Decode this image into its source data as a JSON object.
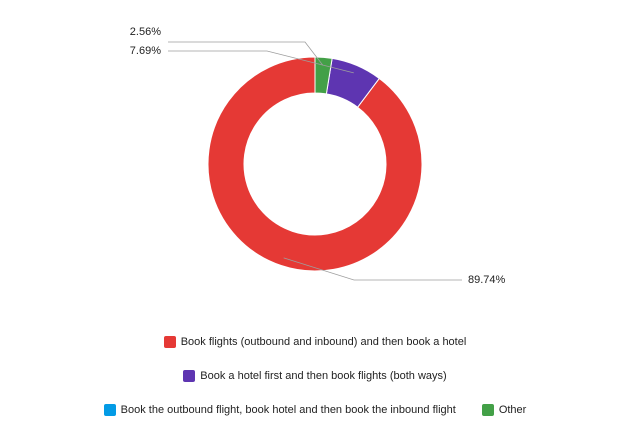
{
  "chart_data": {
    "type": "pie",
    "subtype": "donut",
    "title": "",
    "slices": [
      {
        "name": "Book flights (outbound and inbound) and then book a hotel",
        "value": 89.74,
        "label": "89.74%",
        "color": "#e53935"
      },
      {
        "name": "Book a hotel first and then book flights (both ways)",
        "value": 7.69,
        "label": "7.69%",
        "color": "#5e35b1"
      },
      {
        "name": "Book the outbound flight, book hotel and then book the inbound flight",
        "value": 0,
        "label": "",
        "color": "#039be5"
      },
      {
        "name": "Other",
        "value": 2.56,
        "label": "2.56%",
        "color": "#43a047"
      }
    ],
    "legend": {
      "placement": "bottom",
      "rows": [
        [
          0
        ],
        [
          1
        ],
        [
          2,
          3
        ]
      ]
    }
  }
}
